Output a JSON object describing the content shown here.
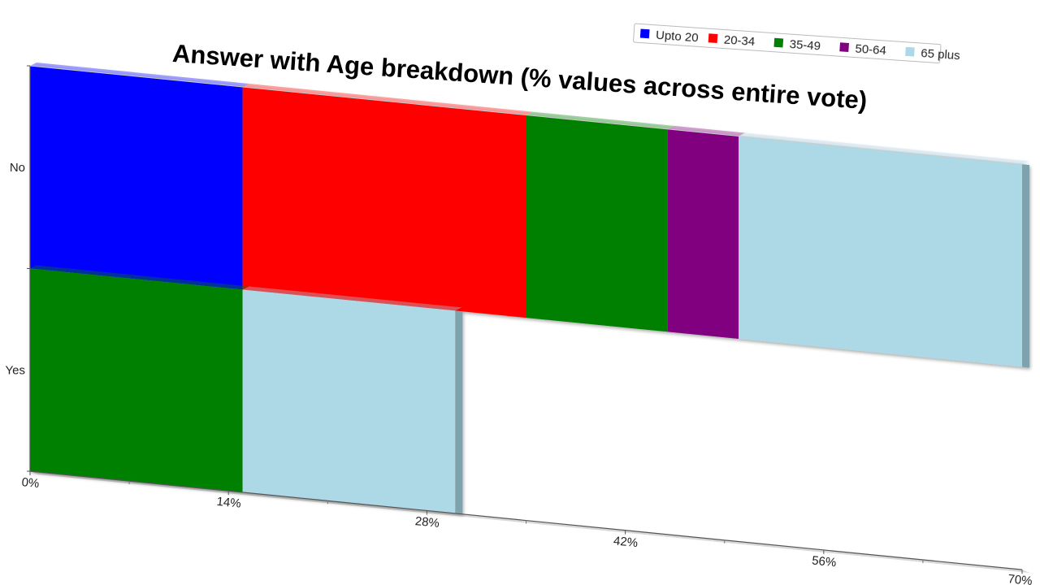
{
  "chart_data": {
    "type": "bar",
    "orientation": "horizontal",
    "stacked": true,
    "title": "Answer with Age breakdown (% values across entire vote)",
    "xlabel": "",
    "ylabel": "",
    "categories": [
      "No",
      "Yes"
    ],
    "x_ticks": [
      "0%",
      "14%",
      "28%",
      "42%",
      "56%",
      "70%"
    ],
    "xlim": [
      0,
      70
    ],
    "unit": "%",
    "legend_position": "top-right",
    "grid": false,
    "series": [
      {
        "name": "Upto 20",
        "color": "#0000ff",
        "values": [
          15,
          0
        ]
      },
      {
        "name": "20-34",
        "color": "#ff0000",
        "values": [
          20,
          0
        ]
      },
      {
        "name": "35-49",
        "color": "#008000",
        "values": [
          10,
          15
        ]
      },
      {
        "name": "50-64",
        "color": "#800080",
        "values": [
          5,
          0
        ]
      },
      {
        "name": "65 plus",
        "color": "#add8e6",
        "values": [
          20,
          15
        ]
      }
    ]
  }
}
